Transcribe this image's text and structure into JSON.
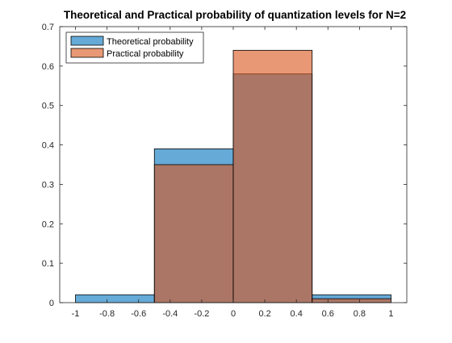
{
  "chart_data": {
    "type": "bar",
    "title": "Theoretical and Practical probability of quantization levels for N=2",
    "xlabel": "",
    "ylabel": "",
    "xlim": [
      -1.1,
      1.1
    ],
    "ylim": [
      0,
      0.7
    ],
    "x_ticks": [
      -1,
      -0.8,
      -0.6,
      -0.4,
      -0.2,
      0,
      0.2,
      0.4,
      0.6,
      0.8,
      1
    ],
    "x_tick_labels": [
      "-1",
      "-0.8",
      "-0.6",
      "-0.4",
      "-0.2",
      "0",
      "0.2",
      "0.4",
      "0.6",
      "0.8",
      "1"
    ],
    "y_ticks": [
      0,
      0.1,
      0.2,
      0.3,
      0.4,
      0.5,
      0.6,
      0.7
    ],
    "y_tick_labels": [
      "0",
      "0.1",
      "0.2",
      "0.3",
      "0.4",
      "0.5",
      "0.6",
      "0.7"
    ],
    "bin_edges": [
      -1,
      -0.5,
      0,
      0.5,
      1
    ],
    "series": [
      {
        "name": "Theoretical probability",
        "values": [
          0.02,
          0.39,
          0.58,
          0.02
        ],
        "color": "#0072BD"
      },
      {
        "name": "Practical probability",
        "values": [
          0.0,
          0.35,
          0.64,
          0.01
        ],
        "color": "#D95319"
      }
    ],
    "face_alpha": 0.6,
    "overlap_color": "#B07A6A",
    "grid": false,
    "legend_position": "top-left"
  }
}
